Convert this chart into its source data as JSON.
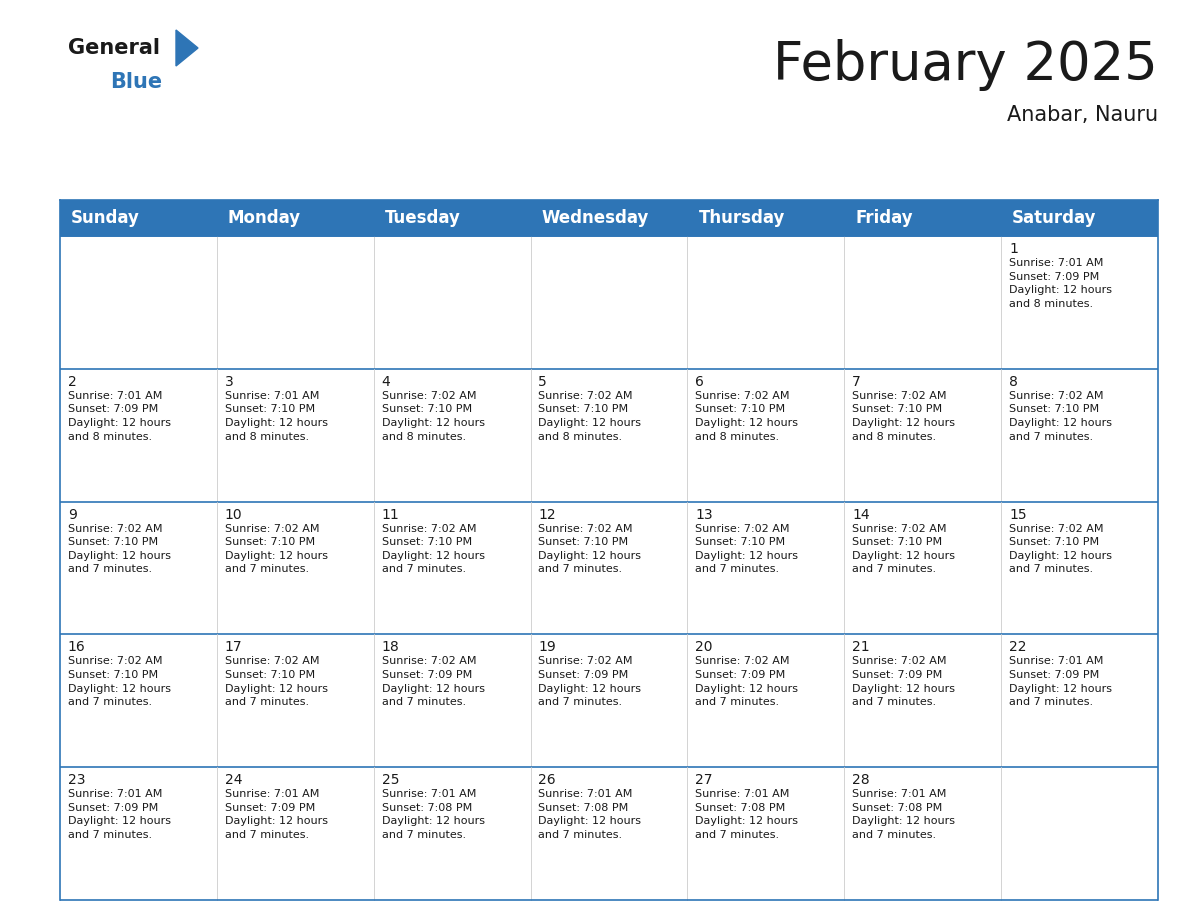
{
  "title": "February 2025",
  "subtitle": "Anabar, Nauru",
  "header_bg": "#2E75B6",
  "header_text_color": "#FFFFFF",
  "border_color": "#2E75B6",
  "cell_border_color": "#AAAAAA",
  "cell_bg": "#FFFFFF",
  "day_headers": [
    "Sunday",
    "Monday",
    "Tuesday",
    "Wednesday",
    "Thursday",
    "Friday",
    "Saturday"
  ],
  "calendar_data": [
    [
      null,
      null,
      null,
      null,
      null,
      null,
      {
        "day": 1,
        "sunrise": "7:01 AM",
        "sunset": "7:09 PM",
        "daylight": "12 hours\nand 8 minutes."
      }
    ],
    [
      {
        "day": 2,
        "sunrise": "7:01 AM",
        "sunset": "7:09 PM",
        "daylight": "12 hours\nand 8 minutes."
      },
      {
        "day": 3,
        "sunrise": "7:01 AM",
        "sunset": "7:10 PM",
        "daylight": "12 hours\nand 8 minutes."
      },
      {
        "day": 4,
        "sunrise": "7:02 AM",
        "sunset": "7:10 PM",
        "daylight": "12 hours\nand 8 minutes."
      },
      {
        "day": 5,
        "sunrise": "7:02 AM",
        "sunset": "7:10 PM",
        "daylight": "12 hours\nand 8 minutes."
      },
      {
        "day": 6,
        "sunrise": "7:02 AM",
        "sunset": "7:10 PM",
        "daylight": "12 hours\nand 8 minutes."
      },
      {
        "day": 7,
        "sunrise": "7:02 AM",
        "sunset": "7:10 PM",
        "daylight": "12 hours\nand 8 minutes."
      },
      {
        "day": 8,
        "sunrise": "7:02 AM",
        "sunset": "7:10 PM",
        "daylight": "12 hours\nand 7 minutes."
      }
    ],
    [
      {
        "day": 9,
        "sunrise": "7:02 AM",
        "sunset": "7:10 PM",
        "daylight": "12 hours\nand 7 minutes."
      },
      {
        "day": 10,
        "sunrise": "7:02 AM",
        "sunset": "7:10 PM",
        "daylight": "12 hours\nand 7 minutes."
      },
      {
        "day": 11,
        "sunrise": "7:02 AM",
        "sunset": "7:10 PM",
        "daylight": "12 hours\nand 7 minutes."
      },
      {
        "day": 12,
        "sunrise": "7:02 AM",
        "sunset": "7:10 PM",
        "daylight": "12 hours\nand 7 minutes."
      },
      {
        "day": 13,
        "sunrise": "7:02 AM",
        "sunset": "7:10 PM",
        "daylight": "12 hours\nand 7 minutes."
      },
      {
        "day": 14,
        "sunrise": "7:02 AM",
        "sunset": "7:10 PM",
        "daylight": "12 hours\nand 7 minutes."
      },
      {
        "day": 15,
        "sunrise": "7:02 AM",
        "sunset": "7:10 PM",
        "daylight": "12 hours\nand 7 minutes."
      }
    ],
    [
      {
        "day": 16,
        "sunrise": "7:02 AM",
        "sunset": "7:10 PM",
        "daylight": "12 hours\nand 7 minutes."
      },
      {
        "day": 17,
        "sunrise": "7:02 AM",
        "sunset": "7:10 PM",
        "daylight": "12 hours\nand 7 minutes."
      },
      {
        "day": 18,
        "sunrise": "7:02 AM",
        "sunset": "7:09 PM",
        "daylight": "12 hours\nand 7 minutes."
      },
      {
        "day": 19,
        "sunrise": "7:02 AM",
        "sunset": "7:09 PM",
        "daylight": "12 hours\nand 7 minutes."
      },
      {
        "day": 20,
        "sunrise": "7:02 AM",
        "sunset": "7:09 PM",
        "daylight": "12 hours\nand 7 minutes."
      },
      {
        "day": 21,
        "sunrise": "7:02 AM",
        "sunset": "7:09 PM",
        "daylight": "12 hours\nand 7 minutes."
      },
      {
        "day": 22,
        "sunrise": "7:01 AM",
        "sunset": "7:09 PM",
        "daylight": "12 hours\nand 7 minutes."
      }
    ],
    [
      {
        "day": 23,
        "sunrise": "7:01 AM",
        "sunset": "7:09 PM",
        "daylight": "12 hours\nand 7 minutes."
      },
      {
        "day": 24,
        "sunrise": "7:01 AM",
        "sunset": "7:09 PM",
        "daylight": "12 hours\nand 7 minutes."
      },
      {
        "day": 25,
        "sunrise": "7:01 AM",
        "sunset": "7:08 PM",
        "daylight": "12 hours\nand 7 minutes."
      },
      {
        "day": 26,
        "sunrise": "7:01 AM",
        "sunset": "7:08 PM",
        "daylight": "12 hours\nand 7 minutes."
      },
      {
        "day": 27,
        "sunrise": "7:01 AM",
        "sunset": "7:08 PM",
        "daylight": "12 hours\nand 7 minutes."
      },
      {
        "day": 28,
        "sunrise": "7:01 AM",
        "sunset": "7:08 PM",
        "daylight": "12 hours\nand 7 minutes."
      },
      null
    ]
  ],
  "logo_general_color": "#1a1a1a",
  "logo_blue_color": "#2E75B6",
  "title_fontsize": 38,
  "subtitle_fontsize": 15,
  "header_fontsize": 12,
  "day_number_fontsize": 10,
  "cell_text_fontsize": 8
}
